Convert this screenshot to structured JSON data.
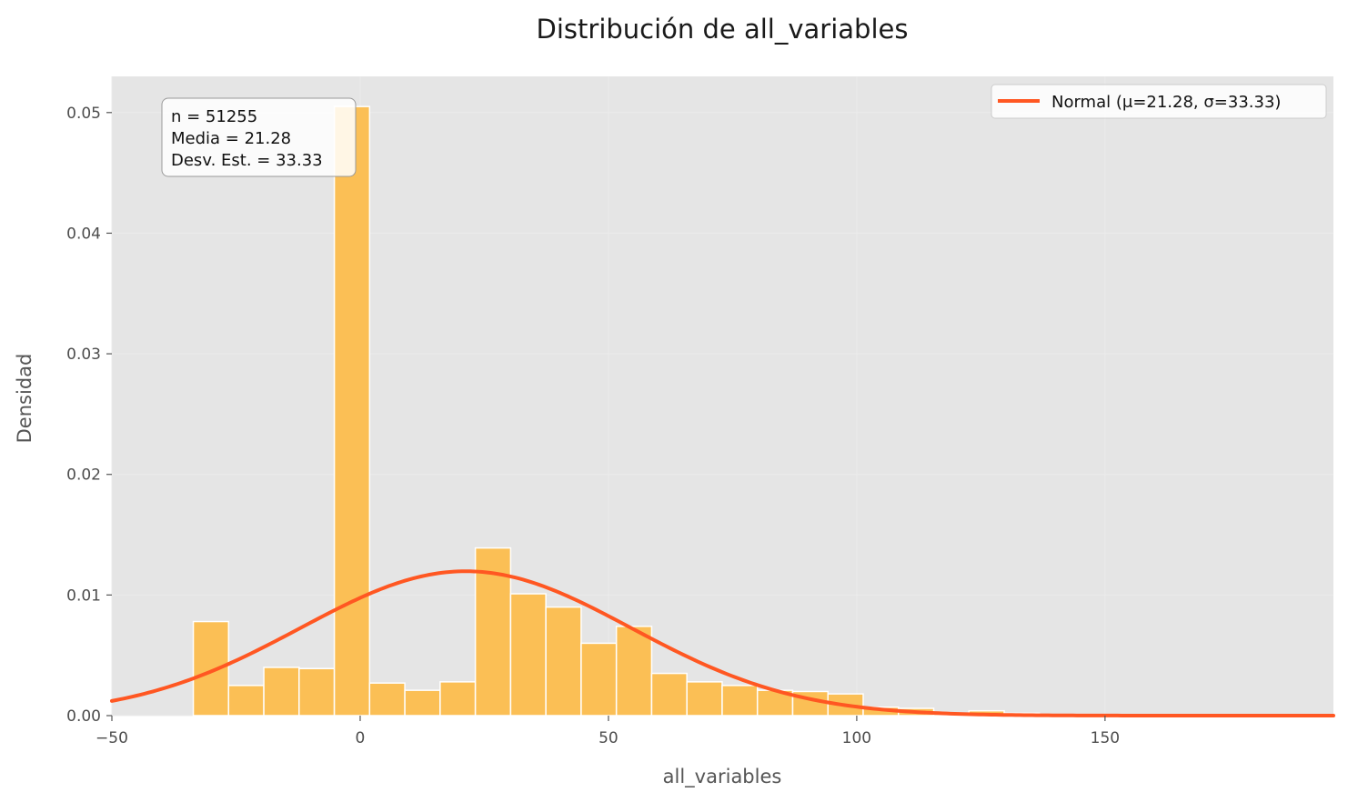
{
  "chart_data": {
    "type": "bar",
    "title": "Distribución de all_variables",
    "xlabel": "all_variables",
    "ylabel": "Densidad",
    "xlim": [
      -50,
      196
    ],
    "ylim": [
      0,
      0.053
    ],
    "grid": true,
    "x_ticks": [
      {
        "value": -50,
        "label": "−50"
      },
      {
        "value": 0,
        "label": "0"
      },
      {
        "value": 50,
        "label": "50"
      },
      {
        "value": 100,
        "label": "100"
      },
      {
        "value": 150,
        "label": "150"
      }
    ],
    "y_ticks": [
      {
        "value": 0,
        "label": "0.00"
      },
      {
        "value": 0.01,
        "label": "0.01"
      },
      {
        "value": 0.02,
        "label": "0.02"
      },
      {
        "value": 0.03,
        "label": "0.03"
      },
      {
        "value": 0.04,
        "label": "0.04"
      },
      {
        "value": 0.05,
        "label": "0.05"
      }
    ],
    "bar_color": "#FBBF55",
    "bar_edge_color": "#ffffff",
    "bins": [
      {
        "x0": -33.6,
        "x1": -26.5,
        "value": 0.0078
      },
      {
        "x0": -26.5,
        "x1": -19.4,
        "value": 0.0025
      },
      {
        "x0": -19.4,
        "x1": -12.3,
        "value": 0.004
      },
      {
        "x0": -12.3,
        "x1": -5.2,
        "value": 0.0039
      },
      {
        "x0": -5.2,
        "x1": 1.9,
        "value": 0.0505
      },
      {
        "x0": 1.9,
        "x1": 9.0,
        "value": 0.0027
      },
      {
        "x0": 9.0,
        "x1": 16.1,
        "value": 0.0021
      },
      {
        "x0": 16.1,
        "x1": 23.2,
        "value": 0.0028
      },
      {
        "x0": 23.2,
        "x1": 30.3,
        "value": 0.0139
      },
      {
        "x0": 30.3,
        "x1": 37.4,
        "value": 0.0101
      },
      {
        "x0": 37.4,
        "x1": 44.5,
        "value": 0.009
      },
      {
        "x0": 44.5,
        "x1": 51.6,
        "value": 0.006
      },
      {
        "x0": 51.6,
        "x1": 58.7,
        "value": 0.0074
      },
      {
        "x0": 58.7,
        "x1": 65.8,
        "value": 0.0035
      },
      {
        "x0": 65.8,
        "x1": 72.9,
        "value": 0.0028
      },
      {
        "x0": 72.9,
        "x1": 80.0,
        "value": 0.0025
      },
      {
        "x0": 80.0,
        "x1": 87.1,
        "value": 0.0021
      },
      {
        "x0": 87.1,
        "x1": 94.2,
        "value": 0.002
      },
      {
        "x0": 94.2,
        "x1": 101.3,
        "value": 0.0018
      },
      {
        "x0": 101.3,
        "x1": 108.4,
        "value": 0.0007
      },
      {
        "x0": 108.4,
        "x1": 115.5,
        "value": 0.0006
      },
      {
        "x0": 115.5,
        "x1": 122.6,
        "value": 0.0002
      },
      {
        "x0": 122.6,
        "x1": 129.7,
        "value": 0.0004
      },
      {
        "x0": 129.7,
        "x1": 136.8,
        "value": 0.0002
      },
      {
        "x0": 136.8,
        "x1": 143.9,
        "value": 0.0001
      },
      {
        "x0": 143.9,
        "x1": 151.0,
        "value": 0.0001
      },
      {
        "x0": 151.0,
        "x1": 158.1,
        "value": 5e-05
      },
      {
        "x0": 158.1,
        "x1": 165.2,
        "value": 4e-05
      },
      {
        "x0": 165.2,
        "x1": 172.3,
        "value": 3e-05
      },
      {
        "x0": 172.3,
        "x1": 179.4,
        "value": 3e-05
      },
      {
        "x0": 179.4,
        "x1": 186.5,
        "value": 2e-05
      },
      {
        "x0": 186.5,
        "x1": 193.6,
        "value": 2e-05
      }
    ],
    "normal_curve": {
      "mu": 21.28,
      "sigma": 33.33,
      "color": "#FF5722",
      "legend_label": "Normal (μ=21.28, σ=33.33)"
    },
    "legend_position": "top-right",
    "stats_box": {
      "lines": [
        "n = 51255",
        "Media = 21.28",
        "Desv. Est. = 33.33"
      ],
      "position": "top-left"
    },
    "colors": {
      "plot_background": "#E5E5E5",
      "grid": "#EBEBEB",
      "bar": "#FBBF55",
      "curve": "#FF5722"
    }
  }
}
